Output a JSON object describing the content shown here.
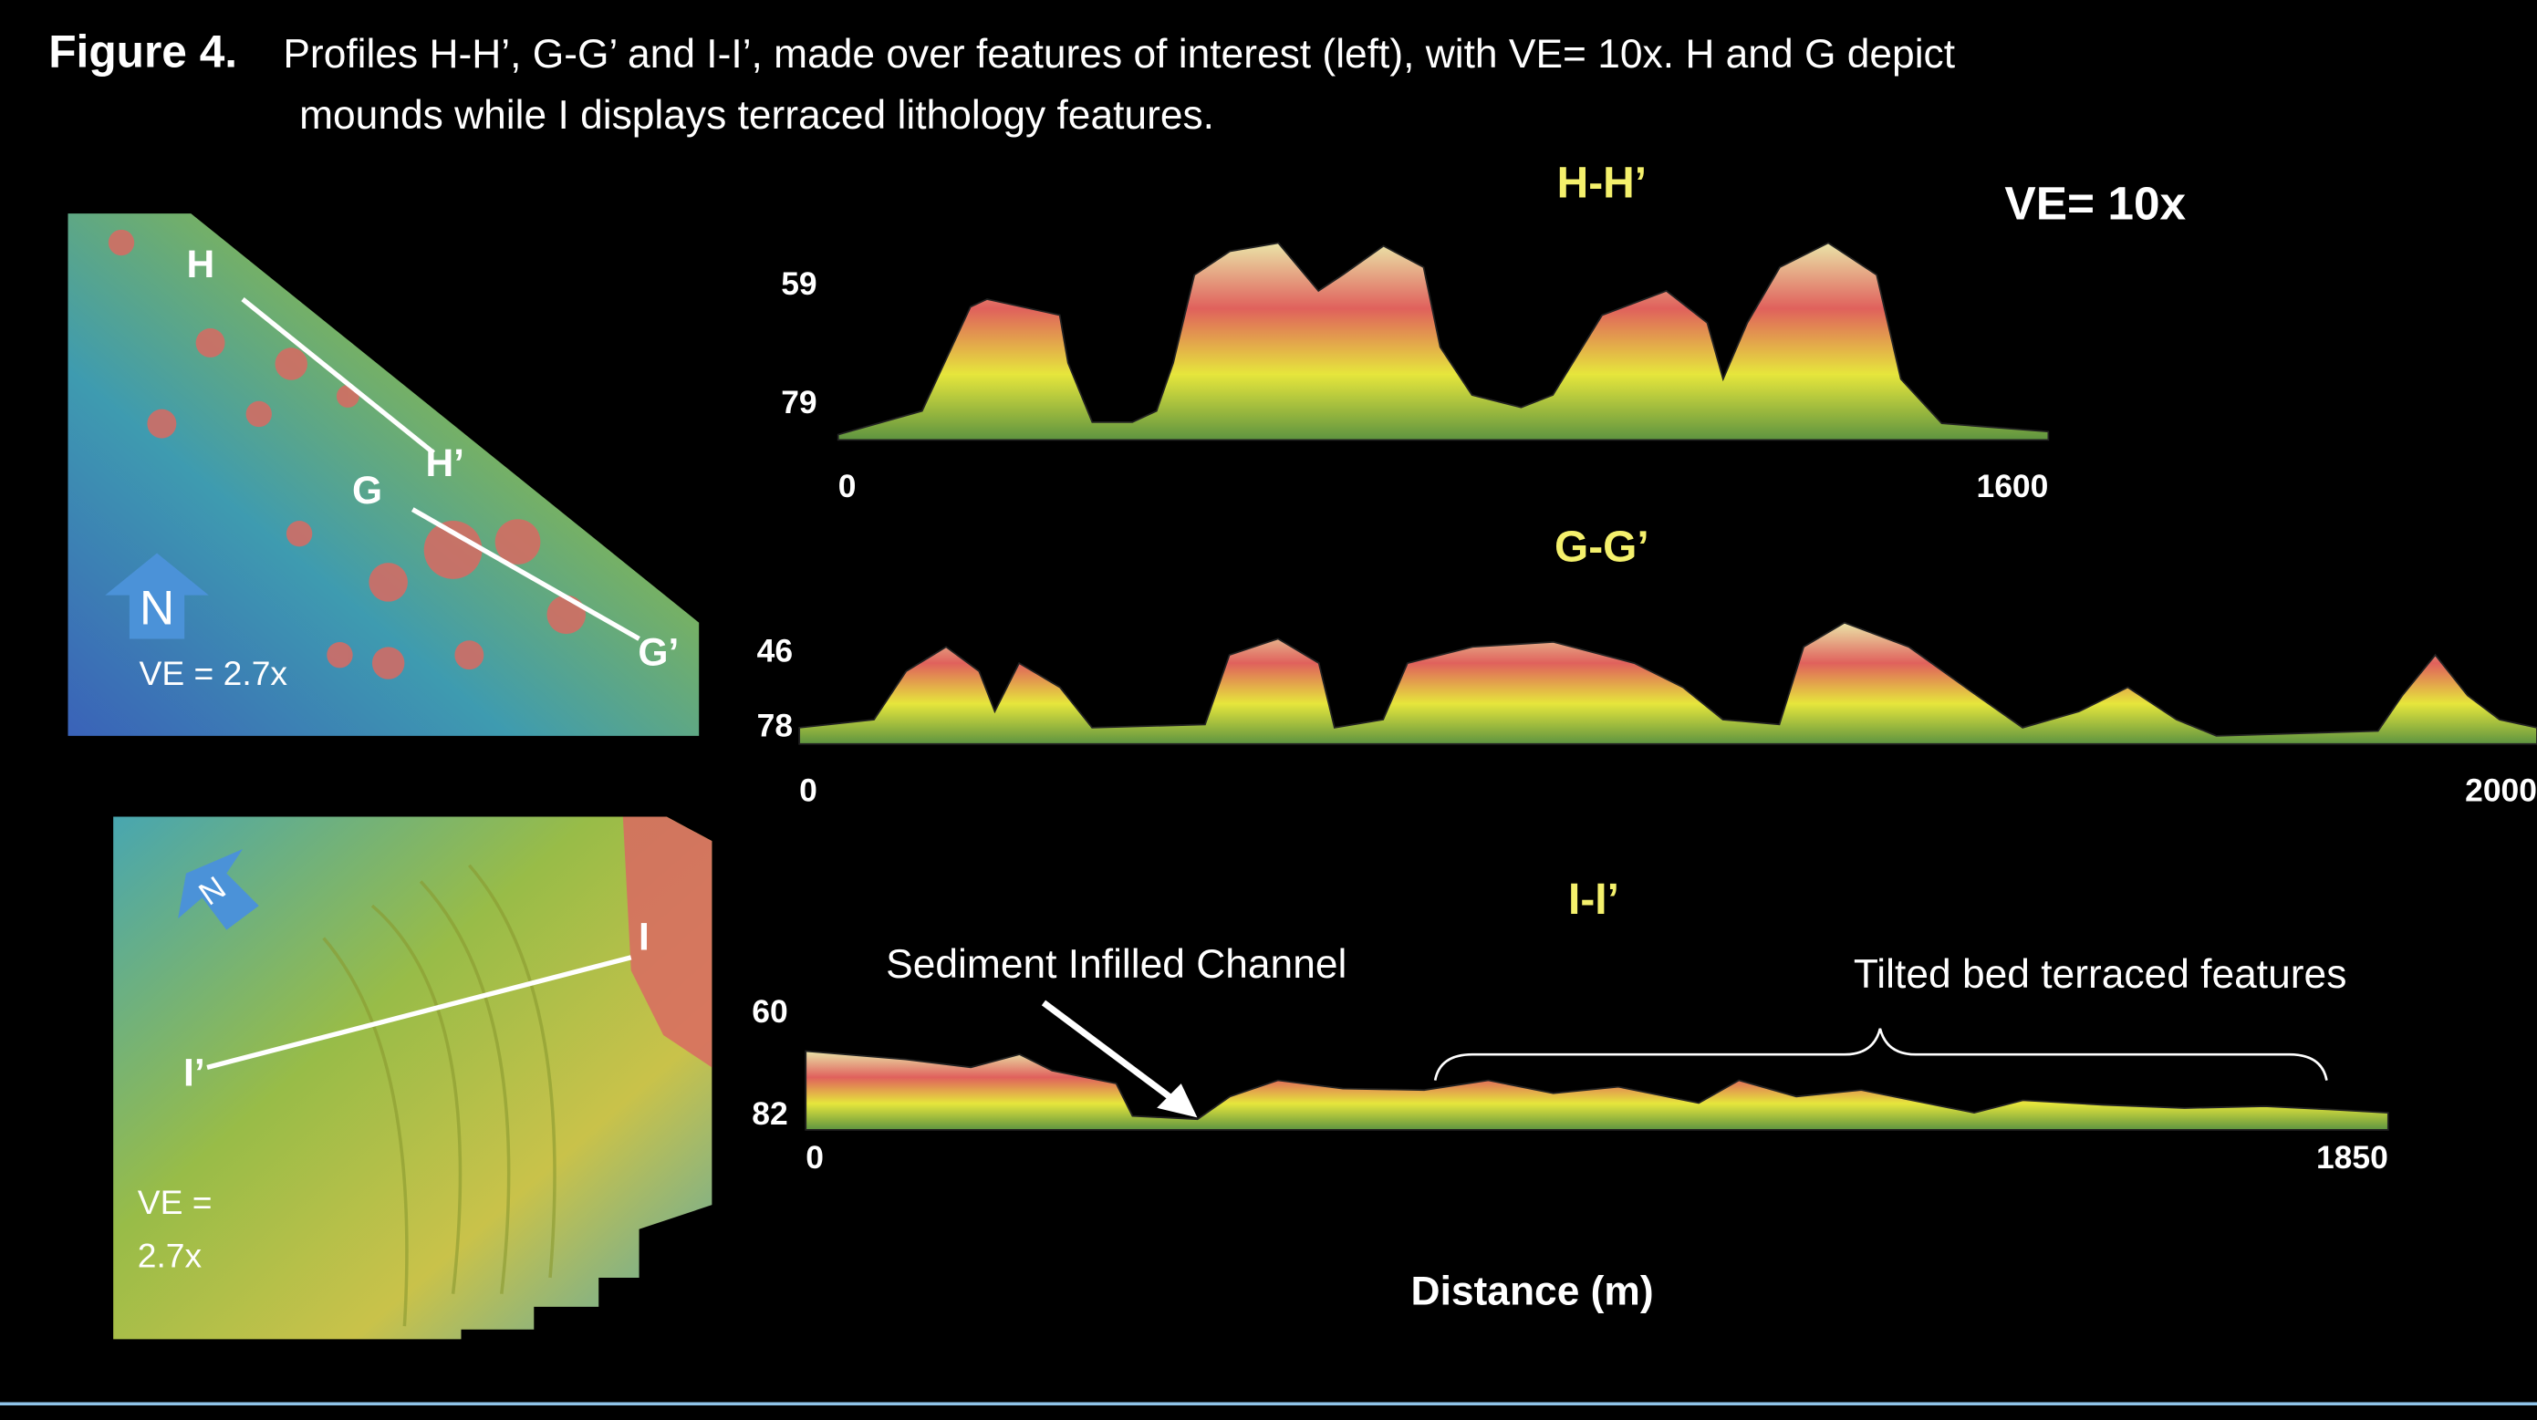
{
  "caption": {
    "label": "Figure 4.",
    "line1": "Profiles H-H’, G-G’ and I-I’, made over features of interest (left), with VE= 10x. H and G depict",
    "line2": "mounds while I displays terraced lithology features."
  },
  "maps": [
    {
      "labels": [
        "H",
        "H’",
        "G",
        "G’"
      ],
      "north": "N",
      "ve": "VE = 2.7x"
    },
    {
      "labels": [
        "I",
        "I’"
      ],
      "north": "N",
      "ve": [
        "VE =",
        "2.7x"
      ]
    }
  ],
  "ve_label": "VE= 10x",
  "x_axis_label": "Distance (m)",
  "chart_data": [
    {
      "type": "area",
      "title": "H-H’",
      "colors": [
        "#5e9440",
        "#e6e63c",
        "#e0615c",
        "#eae4a8"
      ],
      "x": [
        0,
        111,
        175,
        197,
        293,
        304,
        336,
        389,
        421,
        443,
        471,
        518,
        582,
        635,
        667,
        721,
        774,
        796,
        838,
        903,
        945,
        1010,
        1095,
        1149,
        1170,
        1202,
        1245,
        1309,
        1373,
        1405,
        1459,
        1600
      ],
      "values": [
        84.1,
        80.1,
        62.5,
        61.2,
        63.9,
        72.0,
        82.0,
        82.0,
        80.1,
        72.0,
        57.1,
        53.1,
        51.7,
        59.8,
        57.1,
        52.2,
        55.8,
        69.3,
        77.4,
        79.5,
        77.4,
        63.9,
        59.8,
        65.2,
        74.7,
        65.2,
        55.8,
        51.7,
        57.1,
        74.7,
        82.2,
        83.6
      ],
      "xlim": [
        0,
        1600
      ],
      "xticks": [
        0,
        1600
      ],
      "ylim": [
        85,
        50
      ],
      "yticks": [
        59,
        79
      ]
    },
    {
      "type": "area",
      "title": "G-G’",
      "colors": [
        "#5e9440",
        "#e6e63c",
        "#e0615c",
        "#eae4a8"
      ],
      "x": [
        0,
        86,
        123,
        169,
        207,
        225,
        253,
        300,
        337,
        467,
        495,
        551,
        598,
        616,
        672,
        700,
        775,
        868,
        961,
        1017,
        1063,
        1128,
        1156,
        1203,
        1277,
        1342,
        1408,
        1473,
        1529,
        1585,
        1631,
        1817,
        1845,
        1883,
        1920,
        1957,
        2000
      ],
      "values": [
        78,
        74.5,
        53.7,
        43.2,
        53.7,
        71,
        50.2,
        60.6,
        78,
        76.6,
        46.7,
        39.7,
        50.2,
        78,
        74.5,
        50.2,
        43.2,
        41.1,
        50.2,
        60.6,
        74.5,
        76.6,
        43.2,
        32.8,
        43.2,
        60.6,
        78,
        71,
        60.6,
        74.5,
        81.5,
        79.4,
        64.1,
        46.7,
        64.1,
        74.5,
        78
      ],
      "xlim": [
        0,
        2000
      ],
      "xticks": [
        0,
        2000
      ],
      "ylim": [
        85,
        30
      ],
      "yticks": [
        46,
        78
      ]
    },
    {
      "type": "area",
      "title": "I-I’",
      "colors": [
        "#5e9440",
        "#e6e63c",
        "#e0615c",
        "#eae4a8"
      ],
      "x": [
        0,
        117,
        193,
        250,
        288,
        363,
        382,
        458,
        496,
        552,
        628,
        723,
        798,
        874,
        950,
        1044,
        1091,
        1158,
        1234,
        1328,
        1366,
        1423,
        1517,
        1612,
        1706,
        1782,
        1850
      ],
      "values": [
        68,
        69.8,
        71.5,
        68.7,
        72.2,
        75,
        82,
        82.7,
        77.8,
        74.3,
        76.1,
        76.4,
        74.3,
        77.1,
        75.7,
        79.2,
        74.3,
        77.8,
        76.4,
        79.9,
        81.3,
        78.6,
        79.6,
        80.3,
        79.9,
        80.6,
        81.3
      ],
      "xlim": [
        0,
        1850
      ],
      "xticks": [
        0,
        1850
      ],
      "ylim": [
        85,
        57
      ],
      "yticks": [
        60,
        82
      ],
      "annotations": [
        "Sediment Infilled Channel",
        "Tilted bed terraced features"
      ]
    }
  ]
}
